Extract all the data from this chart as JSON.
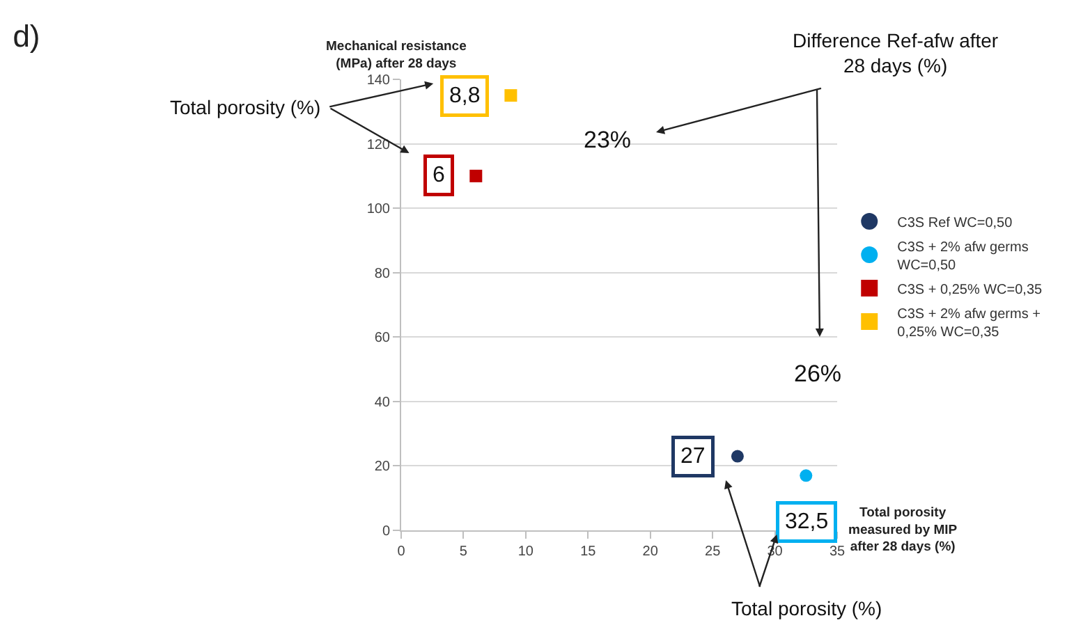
{
  "chart_data": {
    "type": "scatter",
    "title": "d)",
    "xlabel": "Total porosity measured by MIP after 28 days (%)",
    "ylabel": "Mechanical resistance (MPa) after 28 days",
    "xlim": [
      0,
      35
    ],
    "xticks": [
      0,
      5,
      10,
      15,
      20,
      25,
      30,
      35
    ],
    "ylim": [
      0,
      140
    ],
    "yticks": [
      0,
      20,
      40,
      60,
      80,
      100,
      120,
      140
    ],
    "grid": "y",
    "legend": "right",
    "series": [
      {
        "name": "C3S Ref WC=0,50",
        "color": "#1f3864",
        "marker": "circle",
        "x": [
          27
        ],
        "values": [
          23
        ]
      },
      {
        "name": "C3S + 2% afw germs WC=0,50",
        "color": "#00b0f0",
        "marker": "circle",
        "x": [
          32.5
        ],
        "values": [
          17
        ]
      },
      {
        "name": "C3S + 0,25% WC=0,35",
        "color": "#c00000",
        "marker": "square",
        "x": [
          6
        ],
        "values": [
          110
        ]
      },
      {
        "name": "C3S + 2% afw germs + 0,25% WC=0,35",
        "color": "#ffc000",
        "marker": "square",
        "x": [
          8.8
        ],
        "values": [
          135
        ]
      }
    ],
    "annotations": [
      "Total porosity (%)",
      "Difference Ref-afw after 28 days (%)",
      "23%",
      "26%",
      "Total porosity (%)",
      {
        "text": "27",
        "x": 27,
        "y": 23
      },
      {
        "text": "32,5",
        "x": 32.5,
        "y": 17
      },
      {
        "text": "6",
        "x": 6,
        "y": 110
      },
      {
        "text": "8,8",
        "x": 8.8,
        "y": 135
      }
    ]
  }
}
